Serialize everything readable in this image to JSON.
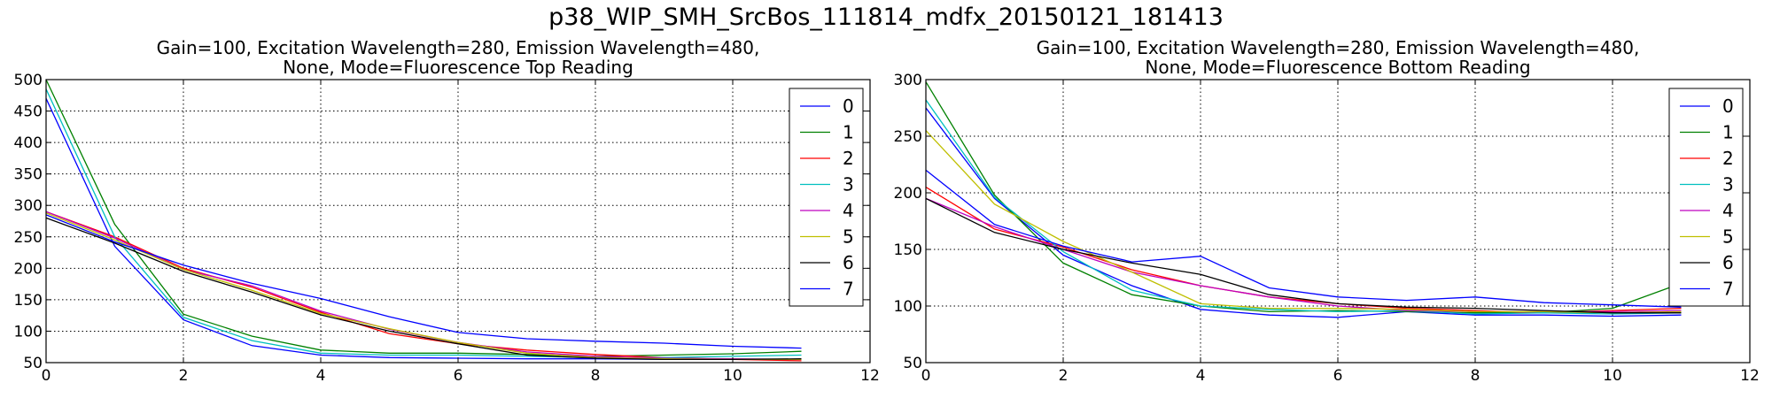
{
  "figure": {
    "suptitle": "p38_WIP_SMH_SrcBos_111814_mdfx_20150121_181413"
  },
  "chart_data": [
    {
      "type": "line",
      "title": [
        "Gain=100, Excitation Wavelength=280, Emission Wavelength=480,",
        "None, Mode=Fluorescence Top Reading"
      ],
      "xlabel": "",
      "ylabel": "",
      "xlim": [
        0,
        12
      ],
      "ylim": [
        50,
        500
      ],
      "xticks": [
        0,
        2,
        4,
        6,
        8,
        10,
        12
      ],
      "yticks": [
        50,
        100,
        150,
        200,
        250,
        300,
        350,
        400,
        450,
        500
      ],
      "grid": true,
      "legend_position": "top-right",
      "x": [
        0,
        1,
        2,
        3,
        4,
        5,
        6,
        7,
        8,
        9,
        10,
        11
      ],
      "series": [
        {
          "name": "0",
          "color": "#0000ff",
          "values": [
            470,
            235,
            118,
            77,
            62,
            58,
            57,
            56,
            56,
            55,
            55,
            55
          ]
        },
        {
          "name": "1",
          "color": "#008000",
          "values": [
            500,
            270,
            127,
            92,
            70,
            65,
            65,
            63,
            60,
            62,
            64,
            68
          ]
        },
        {
          "name": "2",
          "color": "#ff0000",
          "values": [
            290,
            250,
            200,
            170,
            130,
            96,
            80,
            70,
            63,
            58,
            55,
            53
          ]
        },
        {
          "name": "3",
          "color": "#00bfbf",
          "values": [
            485,
            250,
            122,
            85,
            65,
            62,
            62,
            60,
            58,
            58,
            60,
            62
          ]
        },
        {
          "name": "4",
          "color": "#bf00bf",
          "values": [
            290,
            248,
            198,
            172,
            132,
            103,
            82,
            67,
            60,
            57,
            56,
            55
          ]
        },
        {
          "name": "5",
          "color": "#bfbf00",
          "values": [
            288,
            245,
            198,
            165,
            128,
            104,
            82,
            65,
            58,
            56,
            55,
            55
          ]
        },
        {
          "name": "6",
          "color": "#000000",
          "values": [
            280,
            240,
            195,
            162,
            126,
            100,
            80,
            62,
            57,
            55,
            55,
            56
          ]
        },
        {
          "name": "7",
          "color": "#0000ff",
          "values": [
            285,
            242,
            205,
            176,
            152,
            123,
            98,
            88,
            84,
            81,
            76,
            73
          ]
        }
      ]
    },
    {
      "type": "line",
      "title": [
        "Gain=100, Excitation Wavelength=280, Emission Wavelength=480,",
        "None, Mode=Fluorescence Bottom Reading"
      ],
      "xlabel": "",
      "ylabel": "",
      "xlim": [
        0,
        12
      ],
      "ylim": [
        50,
        300
      ],
      "xticks": [
        0,
        2,
        4,
        6,
        8,
        10,
        12
      ],
      "yticks": [
        50,
        100,
        150,
        200,
        250,
        300
      ],
      "grid": true,
      "legend_position": "top-right",
      "x": [
        0,
        1,
        2,
        3,
        4,
        5,
        6,
        7,
        8,
        9,
        10,
        11
      ],
      "series": [
        {
          "name": "0",
          "color": "#0000ff",
          "values": [
            275,
            195,
            145,
            118,
            97,
            92,
            90,
            95,
            92,
            92,
            91,
            92
          ]
        },
        {
          "name": "1",
          "color": "#008000",
          "values": [
            298,
            198,
            138,
            110,
            100,
            95,
            96,
            95,
            94,
            94,
            98,
            120
          ]
        },
        {
          "name": "2",
          "color": "#ff0000",
          "values": [
            205,
            168,
            152,
            132,
            118,
            108,
            102,
            98,
            96,
            94,
            96,
            98
          ]
        },
        {
          "name": "3",
          "color": "#00bfbf",
          "values": [
            282,
            196,
            148,
            114,
            100,
            97,
            95,
            96,
            93,
            94,
            93,
            94
          ]
        },
        {
          "name": "4",
          "color": "#bf00bf",
          "values": [
            195,
            170,
            150,
            130,
            118,
            108,
            100,
            96,
            95,
            95,
            95,
            96
          ]
        },
        {
          "name": "5",
          "color": "#bfbf00",
          "values": [
            255,
            190,
            157,
            130,
            102,
            98,
            98,
            97,
            95,
            95,
            94,
            95
          ]
        },
        {
          "name": "6",
          "color": "#000000",
          "values": [
            195,
            165,
            150,
            138,
            128,
            110,
            102,
            99,
            98,
            96,
            94,
            94
          ]
        },
        {
          "name": "7",
          "color": "#0000ff",
          "values": [
            220,
            172,
            153,
            139,
            144,
            116,
            108,
            105,
            108,
            103,
            101,
            99
          ]
        }
      ]
    }
  ]
}
